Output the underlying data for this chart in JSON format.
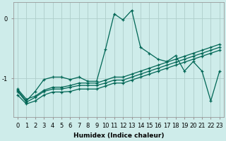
{
  "xlabel": "Humidex (Indice chaleur)",
  "ylabel": "",
  "background_color": "#ceecea",
  "grid_color": "#aececa",
  "line_color": "#006655",
  "x_ticks": [
    0,
    1,
    2,
    3,
    4,
    5,
    6,
    7,
    8,
    9,
    10,
    11,
    12,
    13,
    14,
    15,
    16,
    17,
    18,
    19,
    20,
    21,
    22,
    23
  ],
  "ylim": [
    -1.65,
    0.28
  ],
  "xlim": [
    -0.5,
    23.5
  ],
  "line1_y": [
    -1.2,
    -1.38,
    -1.22,
    -1.02,
    -0.98,
    -0.98,
    -1.02,
    -0.98,
    -1.05,
    -1.05,
    -0.52,
    0.08,
    -0.02,
    0.14,
    -0.48,
    -0.58,
    -0.68,
    -0.72,
    -0.62,
    -0.88,
    -0.72,
    -0.88,
    -1.38,
    -0.88
  ],
  "line2_y": [
    -1.22,
    -1.4,
    -1.32,
    -1.22,
    -1.18,
    -1.18,
    -1.15,
    -1.12,
    -1.12,
    -1.12,
    -1.08,
    -1.03,
    -1.03,
    -0.98,
    -0.93,
    -0.88,
    -0.83,
    -0.78,
    -0.73,
    -0.68,
    -0.63,
    -0.58,
    -0.53,
    -0.48
  ],
  "line3_y": [
    -1.28,
    -1.43,
    -1.38,
    -1.28,
    -1.23,
    -1.23,
    -1.22,
    -1.18,
    -1.18,
    -1.18,
    -1.13,
    -1.08,
    -1.08,
    -1.03,
    -0.98,
    -0.93,
    -0.88,
    -0.83,
    -0.78,
    -0.73,
    -0.68,
    -0.63,
    -0.58,
    -0.53
  ],
  "line4_y": [
    -1.18,
    -1.35,
    -1.3,
    -1.2,
    -1.15,
    -1.15,
    -1.12,
    -1.08,
    -1.08,
    -1.08,
    -1.03,
    -0.98,
    -0.98,
    -0.93,
    -0.88,
    -0.83,
    -0.78,
    -0.73,
    -0.68,
    -0.63,
    -0.58,
    -0.53,
    -0.48,
    -0.43
  ],
  "yticks": [
    0,
    -1
  ],
  "marker": "+",
  "markersize": 3.5,
  "linewidth": 0.9
}
